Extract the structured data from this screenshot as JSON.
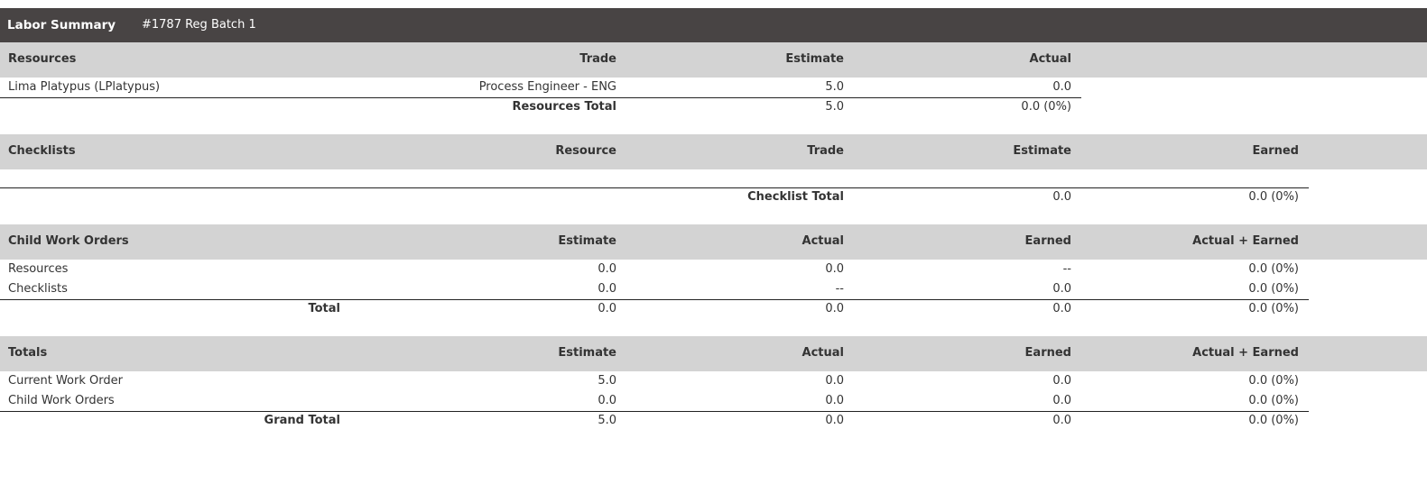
{
  "header": {
    "title": "Labor Summary",
    "work_order": "#1787 Reg Batch 1"
  },
  "resources": {
    "headers": [
      "Resources",
      "Trade",
      "Estimate",
      "Actual"
    ],
    "rows": [
      {
        "name": "Lima Platypus (LPlatypus)",
        "trade": "Process Engineer - ENG",
        "estimate": "5.0",
        "actual": "0.0"
      }
    ],
    "total": {
      "label": "Resources Total",
      "estimate": "5.0",
      "actual": "0.0 (0%)"
    }
  },
  "checklists": {
    "headers": [
      "Checklists",
      "Resource",
      "Trade",
      "Estimate",
      "Earned"
    ],
    "total": {
      "label": "Checklist Total",
      "estimate": "0.0",
      "earned": "0.0 (0%)"
    }
  },
  "child_work_orders": {
    "headers": [
      "Child Work Orders",
      "Estimate",
      "Actual",
      "Earned",
      "Actual + Earned"
    ],
    "rows": [
      {
        "name": "Resources",
        "estimate": "0.0",
        "actual": "0.0",
        "earned": "--",
        "actual_earned": "0.0 (0%)"
      },
      {
        "name": "Checklists",
        "estimate": "0.0",
        "actual": "--",
        "earned": "0.0",
        "actual_earned": "0.0 (0%)"
      }
    ],
    "total": {
      "label": "Total",
      "estimate": "0.0",
      "actual": "0.0",
      "earned": "0.0",
      "actual_earned": "0.0 (0%)"
    }
  },
  "totals": {
    "headers": [
      "Totals",
      "Estimate",
      "Actual",
      "Earned",
      "Actual + Earned"
    ],
    "rows": [
      {
        "name": "Current Work Order",
        "estimate": "5.0",
        "actual": "0.0",
        "earned": "0.0",
        "actual_earned": "0.0 (0%)"
      },
      {
        "name": "Child Work Orders",
        "estimate": "0.0",
        "actual": "0.0",
        "earned": "0.0",
        "actual_earned": "0.0 (0%)"
      }
    ],
    "grand_total": {
      "label": "Grand Total",
      "estimate": "5.0",
      "actual": "0.0",
      "earned": "0.0",
      "actual_earned": "0.0 (0%)"
    }
  },
  "colors": {
    "title_bar": "#484444",
    "section_band": "#d3d3d3",
    "text": "#333333"
  }
}
